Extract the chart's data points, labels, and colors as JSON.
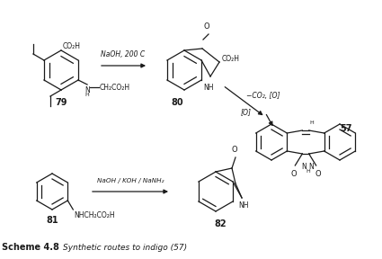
{
  "background_color": "#f5f5f0",
  "text_color": "#1a1a1a",
  "figsize": [
    4.25,
    2.88
  ],
  "dpi": 100,
  "scheme_label": "Scheme 4.8",
  "scheme_caption": "Synthetic routes to indigo (57)",
  "arrow_label_1": "NaOH, 200 C",
  "arrow_label_2": "−CO₂, [O]",
  "arrow_label_3": "[O]",
  "arrow_label_4": "NaOH / KOH / NaNH₂",
  "label_79": "79",
  "label_80": "80",
  "label_57": "57",
  "label_81": "81",
  "label_82": "82"
}
